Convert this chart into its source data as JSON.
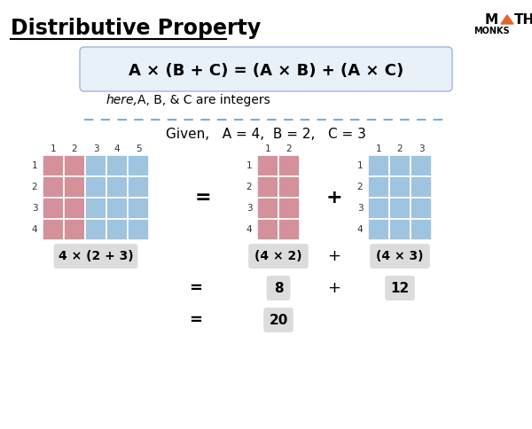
{
  "title": "Distributive Property",
  "formula": "A × (B + C) = (A × B) + (A × C)",
  "here_text": "here,",
  "integers_text": "A, B, & C are integers",
  "given_text": "Given,   A = 4,  B = 2,   C = 3",
  "pink_color": "#d4919a",
  "blue_color": "#9ec4e0",
  "box_bg": "#e8f0f8",
  "label_bg": "#dcdcdc",
  "dashed_color": "#7ab0d4",
  "logo_orange": "#e8622a",
  "A": 4,
  "B": 2,
  "C": 3,
  "label1": "4 × (2 + 3)",
  "label2": "(4 × 2)",
  "label3": "(4 × 3)",
  "eq1": "8",
  "eq2": "12",
  "eq3": "20",
  "fig_width": 6.0,
  "fig_height": 4.84,
  "dpi": 100
}
